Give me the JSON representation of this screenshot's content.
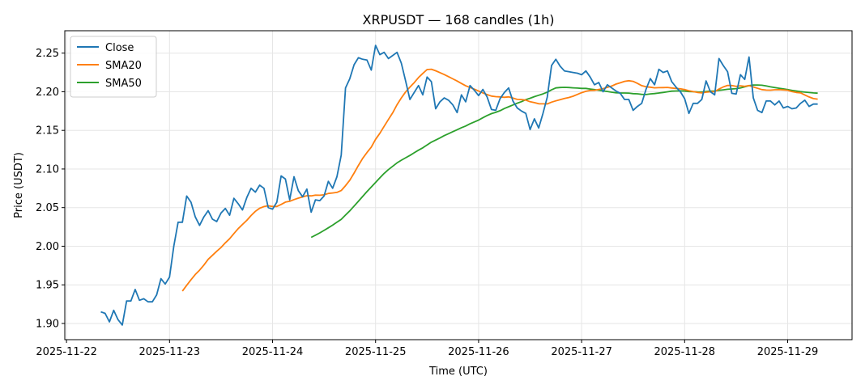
{
  "chart_data": {
    "type": "line",
    "title": "XRPUSDT — 168 candles (1h)",
    "xlabel": "Time (UTC)",
    "ylabel": "Price (USDT)",
    "start": "2025-11-22T08:00:00Z",
    "interval_hours": 1,
    "x_ticks": [
      "2025-11-22",
      "2025-11-23",
      "2025-11-24",
      "2025-11-25",
      "2025-11-26",
      "2025-11-27",
      "2025-11-28",
      "2025-11-29"
    ],
    "y_ticks": [
      "1.90",
      "1.95",
      "2.00",
      "2.05",
      "2.10",
      "2.15",
      "2.20",
      "2.25"
    ],
    "ylim": [
      1.879,
      2.279
    ],
    "xlim_hours_from_2025-11-22": [
      -0.4,
      183
    ],
    "grid": true,
    "legend_position": "top-left",
    "series": [
      {
        "name": "Close",
        "color": "#1f77b4",
        "values": [
          1.915,
          1.913,
          1.902,
          1.917,
          1.905,
          1.898,
          1.929,
          1.929,
          1.944,
          1.93,
          1.932,
          1.928,
          1.928,
          1.937,
          1.958,
          1.951,
          1.96,
          2.0,
          2.031,
          2.031,
          2.065,
          2.057,
          2.038,
          2.027,
          2.038,
          2.046,
          2.035,
          2.032,
          2.043,
          2.049,
          2.04,
          2.062,
          2.055,
          2.047,
          2.063,
          2.075,
          2.07,
          2.079,
          2.075,
          2.05,
          2.048,
          2.057,
          2.091,
          2.087,
          2.06,
          2.09,
          2.072,
          2.064,
          2.074,
          2.044,
          2.06,
          2.059,
          2.065,
          2.084,
          2.075,
          2.09,
          2.118,
          2.205,
          2.217,
          2.235,
          2.244,
          2.242,
          2.241,
          2.228,
          2.26,
          2.248,
          2.251,
          2.243,
          2.247,
          2.251,
          2.237,
          2.214,
          2.19,
          2.199,
          2.208,
          2.196,
          2.219,
          2.213,
          2.178,
          2.187,
          2.192,
          2.189,
          2.183,
          2.173,
          2.196,
          2.187,
          2.208,
          2.202,
          2.195,
          2.203,
          2.193,
          2.177,
          2.176,
          2.191,
          2.199,
          2.205,
          2.188,
          2.179,
          2.175,
          2.172,
          2.151,
          2.165,
          2.153,
          2.172,
          2.193,
          2.234,
          2.242,
          2.233,
          2.227,
          2.226,
          2.225,
          2.224,
          2.222,
          2.227,
          2.219,
          2.209,
          2.212,
          2.2,
          2.209,
          2.205,
          2.201,
          2.198,
          2.19,
          2.19,
          2.176,
          2.181,
          2.185,
          2.203,
          2.217,
          2.209,
          2.229,
          2.225,
          2.227,
          2.213,
          2.206,
          2.2,
          2.191,
          2.172,
          2.185,
          2.185,
          2.19,
          2.214,
          2.2,
          2.196,
          2.243,
          2.234,
          2.226,
          2.198,
          2.197,
          2.222,
          2.216,
          2.245,
          2.192,
          2.176,
          2.173,
          2.188,
          2.188,
          2.183,
          2.188,
          2.179,
          2.181,
          2.178,
          2.179,
          2.185,
          2.189,
          2.181,
          2.184,
          2.184
        ]
      },
      {
        "name": "SMA20",
        "color": "#ff7f0e",
        "window": 20
      },
      {
        "name": "SMA50",
        "color": "#2ca02c",
        "window": 50
      }
    ]
  }
}
